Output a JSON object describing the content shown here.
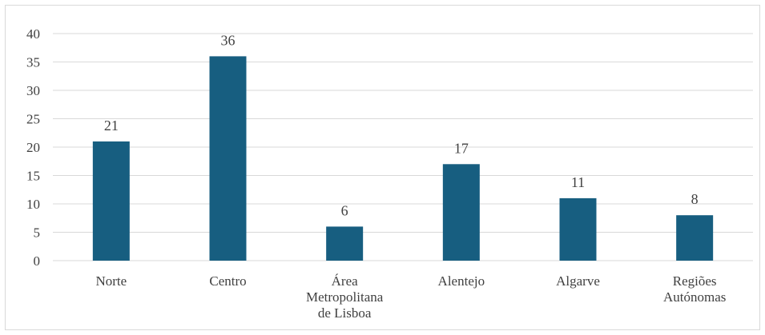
{
  "chart_data": {
    "type": "bar",
    "categories": [
      [
        "Norte"
      ],
      [
        "Centro"
      ],
      [
        "Área",
        "Metropolitana",
        "de Lisboa"
      ],
      [
        "Alentejo"
      ],
      [
        "Algarve"
      ],
      [
        "Regiões",
        "Autónomas"
      ]
    ],
    "values": [
      21,
      36,
      6,
      17,
      11,
      8
    ],
    "data_labels": [
      "21",
      "36",
      "6",
      "17",
      "11",
      "8"
    ],
    "y_ticks": [
      "0",
      "5",
      "10",
      "15",
      "20",
      "25",
      "30",
      "35",
      "40"
    ],
    "ylim": [
      0,
      40
    ],
    "title": "",
    "xlabel": "",
    "ylabel": "",
    "grid": true,
    "legend": "none",
    "colors": {
      "bar": "#175E80",
      "grid": "#d9d9d9",
      "text": "#404040",
      "frame": "#d9d9d9"
    }
  }
}
